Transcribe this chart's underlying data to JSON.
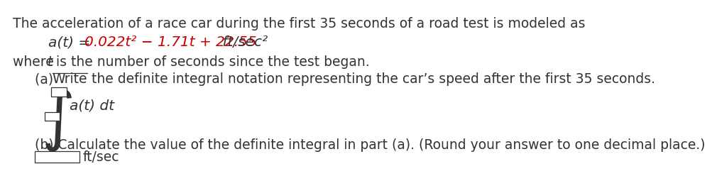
{
  "bg_color": "#ffffff",
  "text_color": "#333333",
  "red_color": "#cc0000",
  "line1": "The acceleration of a race car during the first 35 seconds of a road test is modeled as",
  "eq_prefix": "a(t) = ",
  "eq_red": "0.022t² − 1.71t + 22.55",
  "eq_suffix": " ft/sec²",
  "where_before": "where ",
  "where_italic": "t",
  "where_after": " is the number of seconds since the test began.",
  "part_a_label": "(a) ",
  "part_a_underlined": "Write",
  "part_a_rest": " the definite integral notation representing the car’s speed after the first 35 seconds.",
  "integral_text": "a(t) dt",
  "part_b_text": "(b) Calculate the value of the definite integral in part (a). (Round your answer to one decimal place.)",
  "unit_text": "ft/sec",
  "font_size_main": 13.5,
  "font_size_eq": 14.5
}
